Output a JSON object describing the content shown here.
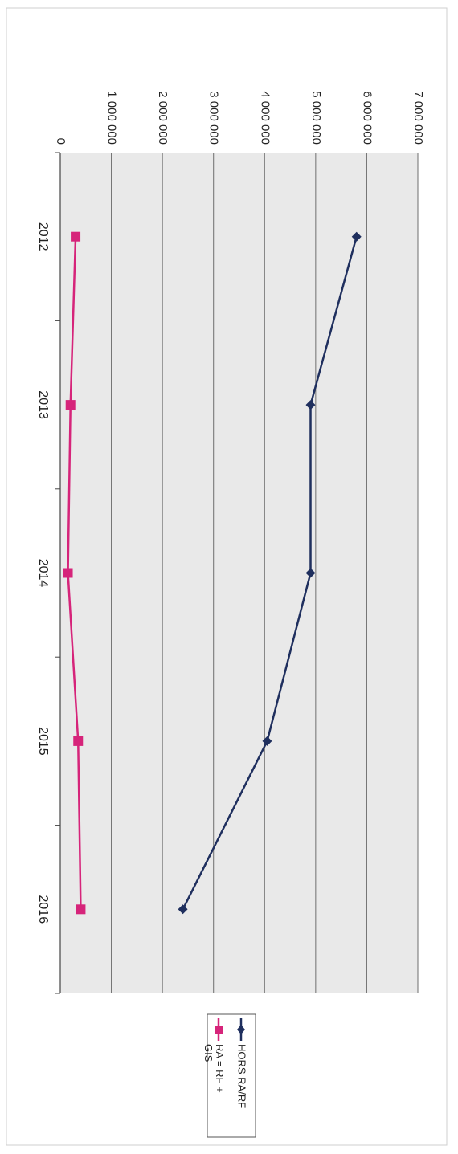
{
  "chart_data": {
    "type": "line",
    "orientation": "rotated 90 degrees clockwise",
    "categories": [
      "2012",
      "2013",
      "2014",
      "2015",
      "2016"
    ],
    "ylim": [
      0,
      7000000
    ],
    "yticks": [
      0,
      1000000,
      2000000,
      3000000,
      4000000,
      5000000,
      6000000,
      7000000
    ],
    "ytick_labels": [
      "0",
      "1 000 000",
      "2 000 000",
      "3 000 000",
      "4 000 000",
      "5 000 000",
      "6 000 000",
      "7 000 000"
    ],
    "grid": true,
    "legend_position": "right",
    "series": [
      {
        "name": "HORS RA/RF",
        "values": [
          5800000,
          4900000,
          4900000,
          4050000,
          2400000
        ],
        "color": "#1f2f5e",
        "marker": "diamond"
      },
      {
        "name": "RA = RF + GIS",
        "values": [
          300000,
          200000,
          150000,
          350000,
          400000
        ],
        "color": "#d6247a",
        "marker": "square"
      }
    ],
    "plot_background": "#e9e9e9",
    "title": "",
    "xlabel": "",
    "ylabel": ""
  }
}
